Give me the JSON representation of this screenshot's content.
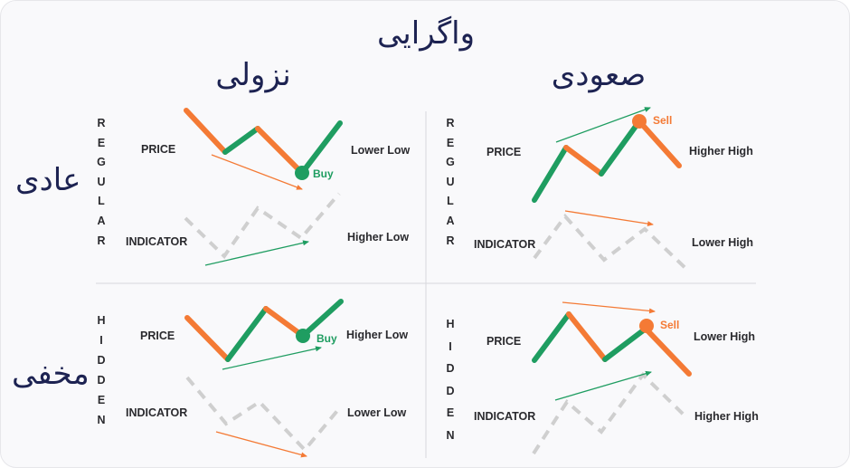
{
  "title": "واگرایی",
  "columns": {
    "bearish": "نزولی",
    "bullish": "صعودی"
  },
  "rows": {
    "regular": "عادی",
    "hidden": "مخفی"
  },
  "vertical_labels": {
    "regular": "REGULAR",
    "hidden": "HIDDEN"
  },
  "panels": {
    "regular_bullish": {
      "price_label": "PRICE",
      "indicator_label": "INDICATOR",
      "price_note": "Lower Low",
      "indicator_note": "Higher Low",
      "signal": "Buy"
    },
    "regular_bearish": {
      "price_label": "PRICE",
      "indicator_label": "INDICATOR",
      "price_note": "Higher High",
      "indicator_note": "Lower High",
      "signal": "Sell"
    },
    "hidden_bullish": {
      "price_label": "PRICE",
      "indicator_label": "INDICATOR",
      "price_note": "Higher Low",
      "indicator_note": "Lower Low",
      "signal": "Buy"
    },
    "hidden_bearish": {
      "price_label": "PRICE",
      "indicator_label": "INDICATOR",
      "price_note": "Lower High",
      "indicator_note": "Higher High",
      "signal": "Sell"
    }
  },
  "colors": {
    "up": "#1f9d61",
    "down": "#f47a35",
    "indicator": "#cfcfcf",
    "divider": "#d8d8dc",
    "text_dark": "#1d2352"
  }
}
